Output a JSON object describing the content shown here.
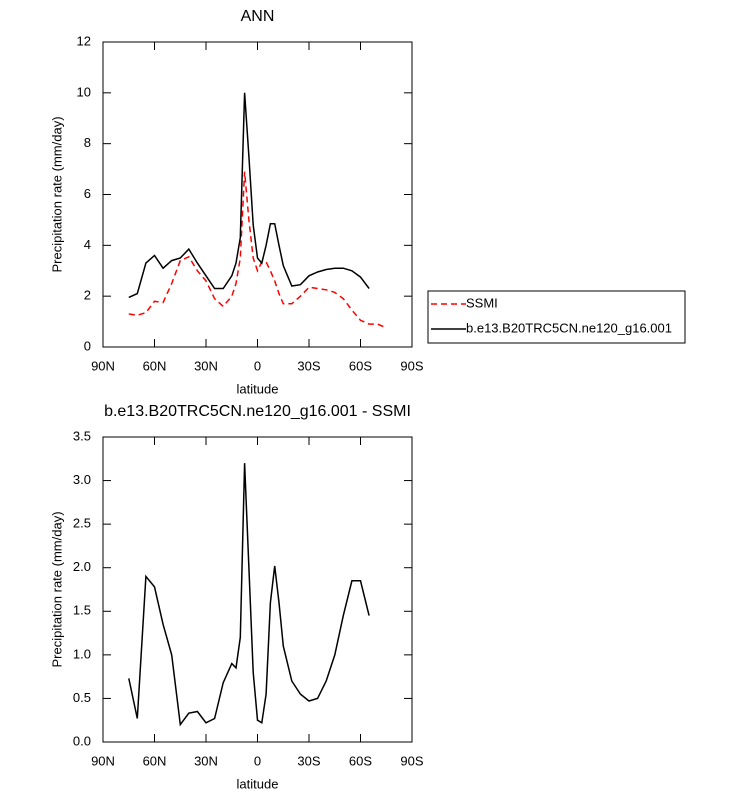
{
  "chart_data": [
    {
      "type": "line",
      "title": "ANN",
      "xlabel": "latitude",
      "ylabel": "Precipitation rate (mm/day)",
      "x": [
        75,
        70,
        65,
        60,
        55,
        50,
        45,
        40,
        35,
        30,
        25,
        20,
        15,
        12.5,
        10,
        7.5,
        5,
        2.5,
        0,
        -2.5,
        -5,
        -7.5,
        -10,
        -12.5,
        -15,
        -20,
        -25,
        -30,
        -35,
        -40,
        -45,
        -50,
        -55,
        -60,
        -65,
        -70,
        -75
      ],
      "series": [
        {
          "name": "SSMI",
          "color": "#ff0000",
          "linestyle": "dashed",
          "values": [
            1.3,
            1.25,
            1.35,
            1.8,
            1.75,
            2.5,
            3.4,
            3.55,
            3.0,
            2.6,
            1.9,
            1.6,
            2.0,
            2.5,
            3.5,
            6.9,
            5.0,
            3.5,
            3.0,
            3.35,
            3.35,
            3.0,
            2.6,
            2.1,
            1.7,
            1.7,
            2.0,
            2.35,
            2.3,
            2.25,
            2.15,
            1.9,
            1.45,
            1.05,
            0.9,
            0.9,
            0.75
          ]
        },
        {
          "name": "b.e13.B20TRC5CN.ne120_g16.001",
          "color": "#000000",
          "linestyle": "solid",
          "values": [
            1.95,
            2.1,
            3.3,
            3.6,
            3.1,
            3.4,
            3.5,
            3.85,
            3.3,
            2.8,
            2.3,
            2.3,
            2.8,
            3.3,
            4.3,
            10.0,
            7.5,
            4.8,
            3.5,
            3.3,
            4.0,
            4.85,
            4.85,
            4.0,
            3.2,
            2.4,
            2.45,
            2.8,
            2.95,
            3.05,
            3.1,
            3.1,
            3.0,
            2.75,
            2.3,
            null,
            null
          ]
        }
      ],
      "xlim": [
        90,
        -90
      ],
      "xticks": [
        {
          "value": 90,
          "label": "90N"
        },
        {
          "value": 60,
          "label": "60N"
        },
        {
          "value": 30,
          "label": "30N"
        },
        0,
        {
          "value": -30,
          "label": "30S"
        },
        {
          "value": -60,
          "label": "60S"
        },
        {
          "value": -90,
          "label": "90S"
        }
      ],
      "ylim": [
        0,
        12
      ],
      "yticks": [
        0,
        2,
        4,
        6,
        8,
        10,
        12
      ],
      "legend": "right"
    },
    {
      "type": "line",
      "title": "b.e13.B20TRC5CN.ne120_g16.001 - SSMI",
      "xlabel": "latitude",
      "ylabel": "Precipitation rate (mm/day)",
      "x": [
        75,
        70,
        65,
        60,
        55,
        50,
        45,
        40,
        35,
        30,
        25,
        20,
        15,
        12.5,
        10,
        7.5,
        5,
        2.5,
        0,
        -2.5,
        -5,
        -7.5,
        -10,
        -12.5,
        -15,
        -20,
        -25,
        -30,
        -35,
        -40,
        -45,
        -50,
        -55,
        -60,
        -65,
        -70,
        -75
      ],
      "color": "#000000",
      "values": [
        0.73,
        0.27,
        1.9,
        1.78,
        1.35,
        1.0,
        0.2,
        0.33,
        0.35,
        0.22,
        0.27,
        0.68,
        0.9,
        0.85,
        1.2,
        3.2,
        2.0,
        0.8,
        0.25,
        0.22,
        0.55,
        1.6,
        2.02,
        1.6,
        1.1,
        0.7,
        0.55,
        0.47,
        0.5,
        0.7,
        1.0,
        1.45,
        1.85,
        1.85,
        1.45,
        null,
        null
      ],
      "xlim": [
        90,
        -90
      ],
      "xticks": [
        {
          "value": 90,
          "label": "90N"
        },
        {
          "value": 60,
          "label": "60N"
        },
        {
          "value": 30,
          "label": "30N"
        },
        0,
        {
          "value": -30,
          "label": "30S"
        },
        {
          "value": -60,
          "label": "60S"
        },
        {
          "value": -90,
          "label": "90S"
        }
      ],
      "ylim": [
        0,
        3.5
      ],
      "yticks": [
        {
          "value": 0,
          "label": "0.0"
        },
        0.5,
        {
          "value": 1,
          "label": "1.0"
        },
        1.5,
        {
          "value": 2,
          "label": "2.0"
        },
        2.5,
        {
          "value": 3,
          "label": "3.0"
        },
        3.5
      ]
    }
  ]
}
